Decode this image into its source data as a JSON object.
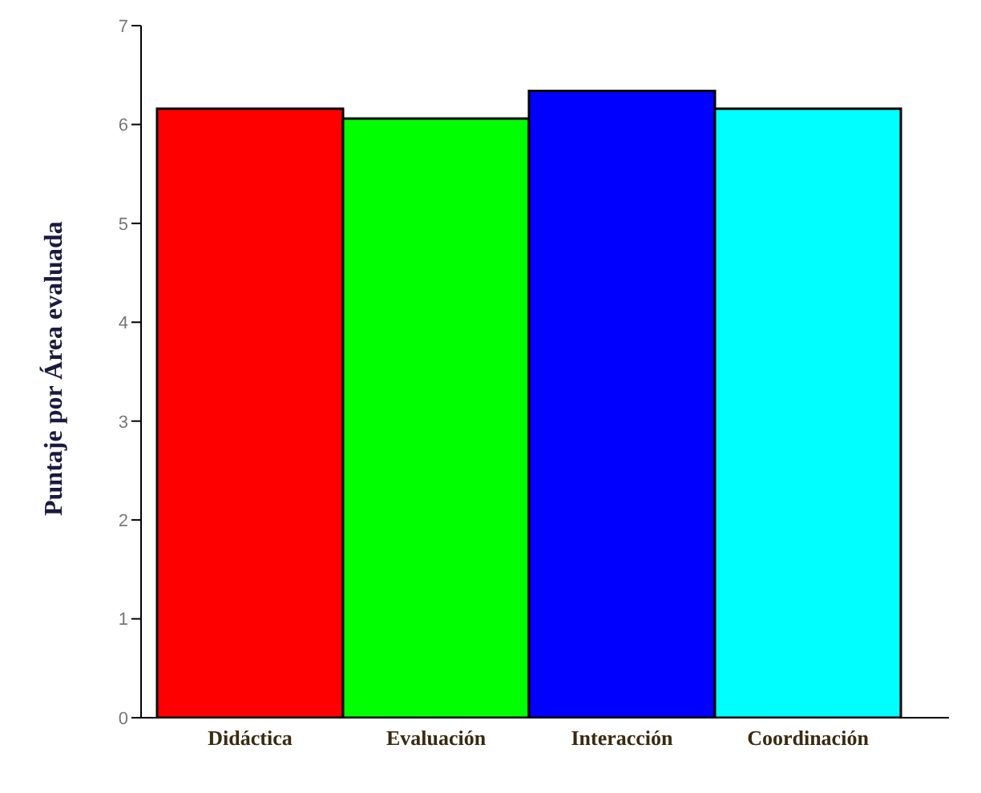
{
  "chart_data": {
    "type": "bar",
    "ylabel": "Puntaje por Área evaluada",
    "categories": [
      "Didáctica",
      "Evaluación",
      "Interacción",
      "Coordinación"
    ],
    "values": [
      6.16,
      6.06,
      6.34,
      6.16
    ],
    "colors": [
      "#ff0000",
      "#00ff00",
      "#0000ff",
      "#00ffff"
    ],
    "ylim": [
      0,
      7
    ],
    "yticks": [
      0,
      1,
      2,
      3,
      4,
      5,
      6,
      7
    ],
    "grid": false,
    "legend": false
  }
}
